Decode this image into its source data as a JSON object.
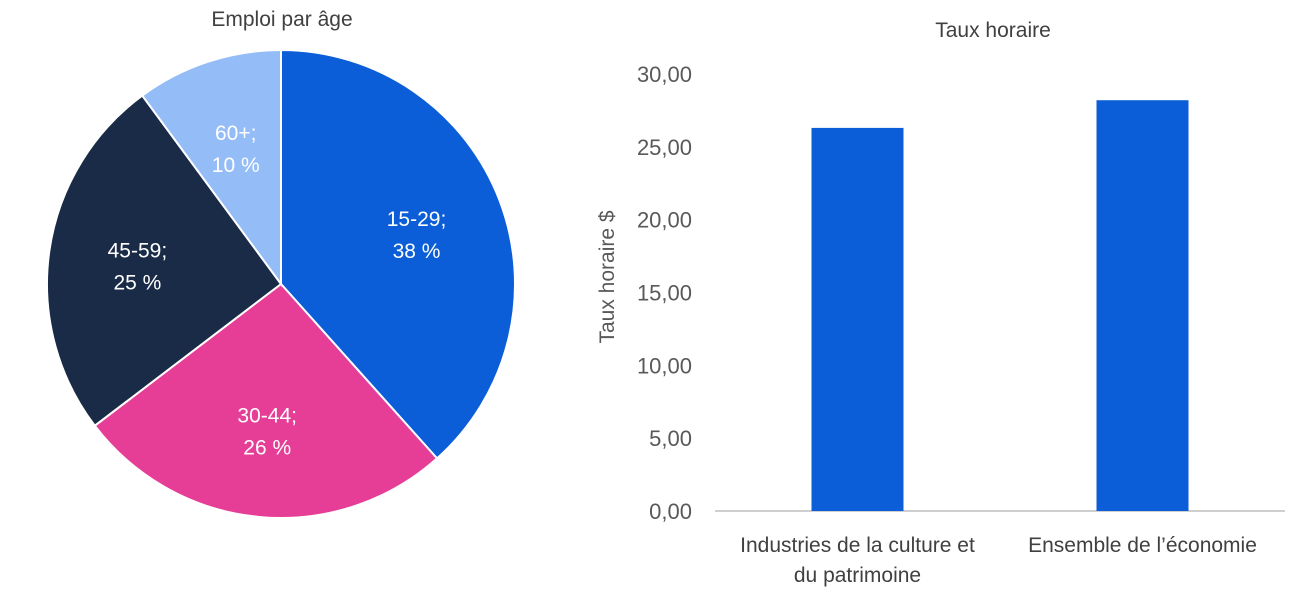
{
  "chart_data": [
    {
      "type": "pie",
      "title": "Emploi par âge",
      "slices": [
        {
          "label": "15-29;",
          "pct": "38 %",
          "value": 38,
          "color": "#0b5ed7"
        },
        {
          "label": "30-44;",
          "pct": "26 %",
          "value": 26,
          "color": "#e63e97"
        },
        {
          "label": "45-59;",
          "pct": "25 %",
          "value": 25,
          "color": "#1a2b48"
        },
        {
          "label": "60+;",
          "pct": "10 %",
          "value": 10,
          "color": "#94bcf7"
        }
      ]
    },
    {
      "type": "bar",
      "title": "Taux horaire",
      "ylabel": "Taux horaire $",
      "categories": [
        [
          "Industries de la culture et",
          "du patrimoine"
        ],
        [
          "Ensemble de l’économie"
        ]
      ],
      "values": [
        26.3,
        28.2
      ],
      "ylim": [
        0,
        30
      ],
      "yticks": [
        "0,00",
        "5,00",
        "10,00",
        "15,00",
        "20,00",
        "25,00",
        "30,00"
      ],
      "bar_color": "#0b5ed7",
      "grid": false
    }
  ]
}
